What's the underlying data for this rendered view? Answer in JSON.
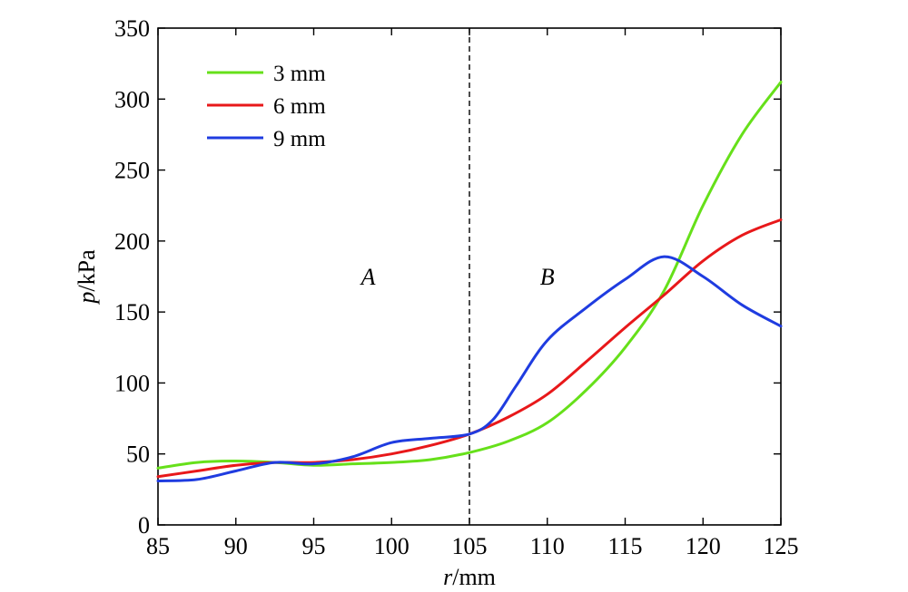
{
  "chart_data": {
    "type": "line",
    "xlabel": {
      "var": "r",
      "unit": "/mm"
    },
    "ylabel": {
      "var": "p",
      "unit": "/kPa"
    },
    "xlim": [
      85,
      125
    ],
    "ylim": [
      0,
      350
    ],
    "xticks": [
      85,
      90,
      95,
      100,
      105,
      110,
      115,
      120,
      125
    ],
    "yticks": [
      0,
      50,
      100,
      150,
      200,
      250,
      300,
      350
    ],
    "grid": false,
    "legend_position": "top-left",
    "vline": {
      "x": 105,
      "style": "dashed"
    },
    "regions": [
      {
        "label": "A",
        "x": 98.5,
        "y": 175
      },
      {
        "label": "B",
        "x": 110,
        "y": 175
      }
    ],
    "series": [
      {
        "name": "3 mm",
        "color": "#66e01a",
        "x": [
          85,
          87.5,
          90,
          92.5,
          95,
          97.5,
          100,
          102.5,
          105,
          107.5,
          110,
          112.5,
          115,
          117.5,
          120,
          122.5,
          125
        ],
        "y": [
          40,
          44,
          45,
          44,
          42,
          43,
          44,
          46,
          51,
          59,
          72,
          95,
          125,
          165,
          225,
          275,
          312
        ]
      },
      {
        "name": "6 mm",
        "color": "#e8181a",
        "x": [
          85,
          87.5,
          90,
          92.5,
          95,
          97.5,
          100,
          102.5,
          105,
          107.5,
          110,
          112.5,
          115,
          117.5,
          120,
          122.5,
          125
        ],
        "y": [
          34,
          38,
          42,
          44,
          44,
          46,
          50,
          56,
          64,
          76,
          92,
          115,
          139,
          162,
          186,
          204,
          215
        ]
      },
      {
        "name": "9 mm",
        "color": "#1f3ce0",
        "x": [
          85,
          87.5,
          90,
          92.5,
          95,
          97.5,
          100,
          102.5,
          105,
          106.5,
          108,
          110,
          112.5,
          115,
          117.5,
          120,
          122.5,
          125
        ],
        "y": [
          31,
          32,
          38,
          44,
          43,
          48,
          58,
          61,
          64,
          74,
          98,
          130,
          153,
          173,
          189,
          175,
          155,
          140
        ]
      }
    ]
  }
}
